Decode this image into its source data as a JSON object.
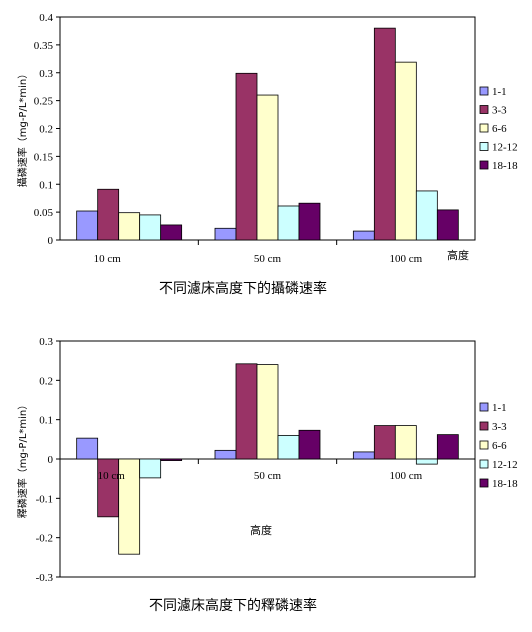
{
  "colors": [
    "#9999ff",
    "#993366",
    "#ffffcc",
    "#ccffff",
    "#660066"
  ],
  "chart_data": [
    {
      "type": "bar",
      "caption": "不同濾床高度下的攝磷速率",
      "ylabel": "攝磷速率（mg-P/L*min）",
      "xtitle": "高度",
      "categories": [
        "10 cm",
        "50 cm",
        "100 cm"
      ],
      "ylim": [
        0,
        0.4
      ],
      "yticks": [
        0,
        0.05,
        0.1,
        0.15,
        0.2,
        0.25,
        0.3,
        0.35,
        0.4
      ],
      "ytick_labels": [
        "0",
        "0.05",
        "0.1",
        "0.15",
        "0.2",
        "0.25",
        "0.3",
        "0.35",
        "0.4"
      ],
      "legend_position": "right",
      "series": [
        {
          "name": "1-1",
          "values": [
            0.052,
            0.021,
            0.016
          ]
        },
        {
          "name": "3-3",
          "values": [
            0.091,
            0.299,
            0.38
          ]
        },
        {
          "name": "6-6",
          "values": [
            0.049,
            0.26,
            0.319
          ]
        },
        {
          "name": "12-12",
          "values": [
            0.045,
            0.061,
            0.088
          ]
        },
        {
          "name": "18-18",
          "values": [
            0.027,
            0.066,
            0.054
          ]
        }
      ]
    },
    {
      "type": "bar",
      "caption": "不同濾床高度下的釋磷速率",
      "ylabel": "釋磷速率（mg-P/L*min）",
      "xtitle": "高度",
      "categories": [
        "10 cm",
        "50 cm",
        "100 cm"
      ],
      "ylim": [
        -0.3,
        0.3
      ],
      "yticks": [
        -0.3,
        -0.2,
        -0.1,
        0,
        0.1,
        0.2,
        0.3
      ],
      "ytick_labels": [
        "-0.3",
        "-0.2",
        "-0.1",
        "0",
        "0.1",
        "0.2",
        "0.3"
      ],
      "legend_position": "right",
      "series": [
        {
          "name": "1-1",
          "values": [
            0.053,
            0.022,
            0.018
          ]
        },
        {
          "name": "3-3",
          "values": [
            -0.147,
            0.242,
            0.085
          ]
        },
        {
          "name": "6-6",
          "values": [
            -0.242,
            0.24,
            0.085
          ]
        },
        {
          "name": "12-12",
          "values": [
            -0.048,
            0.06,
            -0.013
          ]
        },
        {
          "name": "18-18",
          "values": [
            -0.004,
            0.073,
            0.062
          ]
        }
      ]
    }
  ]
}
